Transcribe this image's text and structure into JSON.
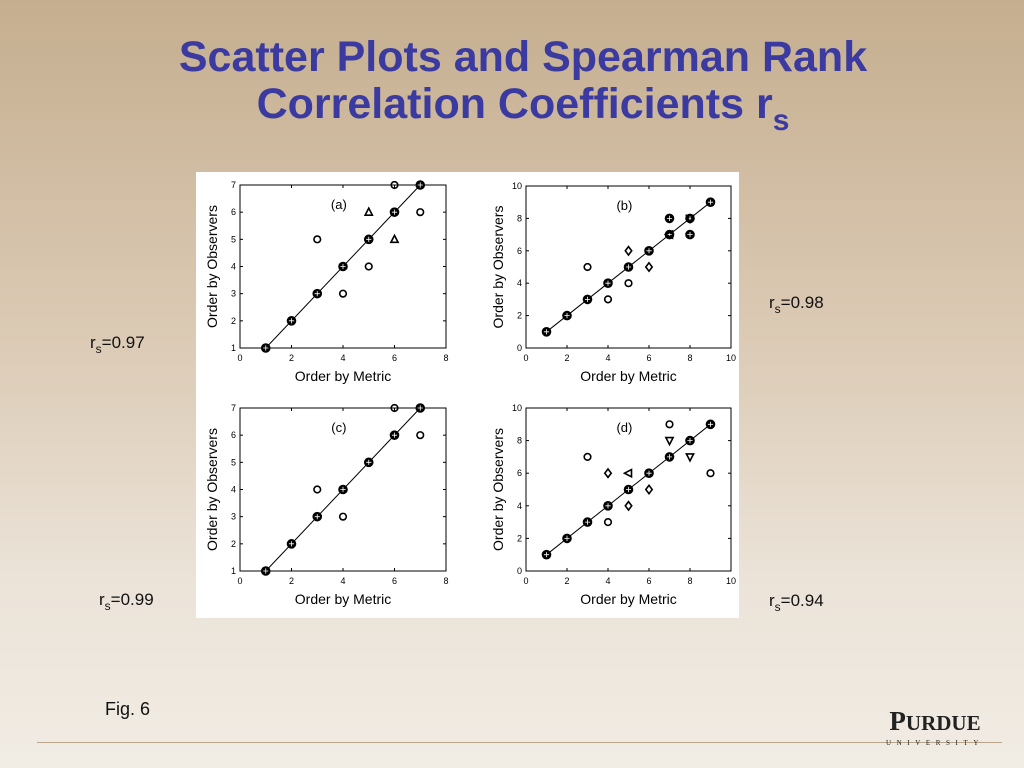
{
  "slide": {
    "title_line1": "Scatter Plots and Spearman Rank",
    "title_line2": "Correlation Coefficients r",
    "title_subscript": "s",
    "figure_caption": "Fig. 6",
    "logo_word_initial": "P",
    "logo_word_rest": "URDUE",
    "logo_university": "UNIVERSITY"
  },
  "rs_labels": [
    {
      "r": "r",
      "sub": "s",
      "value": "=0.97"
    },
    {
      "r": "r",
      "sub": "s",
      "value": "=0.98"
    },
    {
      "r": "r",
      "sub": "s",
      "value": "=0.99"
    },
    {
      "r": "r",
      "sub": "s",
      "value": "=0.94"
    }
  ],
  "chart_data": [
    {
      "type": "scatter",
      "panel_label": "(a)",
      "xlabel": "Order by Metric",
      "ylabel": "Order by Observers",
      "xlim": [
        0,
        8
      ],
      "ylim": [
        1,
        7
      ],
      "xticks": [
        0,
        2,
        4,
        6,
        8
      ],
      "yticks": [
        1,
        2,
        3,
        4,
        5,
        6,
        7
      ],
      "diagonal": [
        [
          1,
          1
        ],
        [
          7,
          7
        ]
      ],
      "points": [
        {
          "x": 1,
          "y": 1,
          "marker": "star"
        },
        {
          "x": 2,
          "y": 2,
          "marker": "star"
        },
        {
          "x": 3,
          "y": 3,
          "marker": "star"
        },
        {
          "x": 4,
          "y": 4,
          "marker": "star"
        },
        {
          "x": 5,
          "y": 5,
          "marker": "star"
        },
        {
          "x": 6,
          "y": 6,
          "marker": "star"
        },
        {
          "x": 7,
          "y": 7,
          "marker": "star"
        },
        {
          "x": 3,
          "y": 5,
          "marker": "circle"
        },
        {
          "x": 4,
          "y": 3,
          "marker": "circle"
        },
        {
          "x": 5,
          "y": 4,
          "marker": "circle"
        },
        {
          "x": 6,
          "y": 7,
          "marker": "circle"
        },
        {
          "x": 7,
          "y": 6,
          "marker": "circle"
        },
        {
          "x": 5,
          "y": 6,
          "marker": "triangle-up"
        },
        {
          "x": 6,
          "y": 5,
          "marker": "triangle-up"
        }
      ]
    },
    {
      "type": "scatter",
      "panel_label": "(b)",
      "xlabel": "Order by Metric",
      "ylabel": "Order by Observers",
      "xlim": [
        0,
        10
      ],
      "ylim": [
        0,
        10
      ],
      "xticks": [
        0,
        2,
        4,
        6,
        8,
        10
      ],
      "yticks": [
        0,
        2,
        4,
        6,
        8,
        10
      ],
      "diagonal": [
        [
          1,
          1
        ],
        [
          9,
          9
        ]
      ],
      "points": [
        {
          "x": 1,
          "y": 1,
          "marker": "star"
        },
        {
          "x": 2,
          "y": 2,
          "marker": "star"
        },
        {
          "x": 3,
          "y": 3,
          "marker": "star"
        },
        {
          "x": 4,
          "y": 4,
          "marker": "star"
        },
        {
          "x": 5,
          "y": 5,
          "marker": "star"
        },
        {
          "x": 6,
          "y": 6,
          "marker": "star"
        },
        {
          "x": 7,
          "y": 7,
          "marker": "star"
        },
        {
          "x": 8,
          "y": 8,
          "marker": "star"
        },
        {
          "x": 9,
          "y": 9,
          "marker": "star"
        },
        {
          "x": 3,
          "y": 5,
          "marker": "circle"
        },
        {
          "x": 4,
          "y": 3,
          "marker": "circle"
        },
        {
          "x": 5,
          "y": 4,
          "marker": "circle"
        },
        {
          "x": 5,
          "y": 6,
          "marker": "diamond"
        },
        {
          "x": 6,
          "y": 5,
          "marker": "diamond"
        },
        {
          "x": 7,
          "y": 8,
          "marker": "star"
        },
        {
          "x": 8,
          "y": 7,
          "marker": "star"
        },
        {
          "x": 7,
          "y": 7,
          "marker": "triangle-left"
        },
        {
          "x": 8,
          "y": 8,
          "marker": "triangle-down"
        }
      ]
    },
    {
      "type": "scatter",
      "panel_label": "(c)",
      "xlabel": "Order by Metric",
      "ylabel": "Order by Observers",
      "xlim": [
        0,
        8
      ],
      "ylim": [
        1,
        7
      ],
      "xticks": [
        0,
        2,
        4,
        6,
        8
      ],
      "yticks": [
        1,
        2,
        3,
        4,
        5,
        6,
        7
      ],
      "diagonal": [
        [
          1,
          1
        ],
        [
          7,
          7
        ]
      ],
      "points": [
        {
          "x": 1,
          "y": 1,
          "marker": "star"
        },
        {
          "x": 2,
          "y": 2,
          "marker": "star"
        },
        {
          "x": 3,
          "y": 3,
          "marker": "star"
        },
        {
          "x": 4,
          "y": 4,
          "marker": "star"
        },
        {
          "x": 5,
          "y": 5,
          "marker": "star"
        },
        {
          "x": 6,
          "y": 6,
          "marker": "star"
        },
        {
          "x": 7,
          "y": 7,
          "marker": "star"
        },
        {
          "x": 3,
          "y": 4,
          "marker": "circle"
        },
        {
          "x": 4,
          "y": 3,
          "marker": "circle"
        },
        {
          "x": 6,
          "y": 7,
          "marker": "circle"
        },
        {
          "x": 7,
          "y": 6,
          "marker": "circle"
        }
      ]
    },
    {
      "type": "scatter",
      "panel_label": "(d)",
      "xlabel": "Order by Metric",
      "ylabel": "Order by Observers",
      "xlim": [
        0,
        10
      ],
      "ylim": [
        0,
        10
      ],
      "xticks": [
        0,
        2,
        4,
        6,
        8,
        10
      ],
      "yticks": [
        0,
        2,
        4,
        6,
        8,
        10
      ],
      "diagonal": [
        [
          1,
          1
        ],
        [
          9,
          9
        ]
      ],
      "points": [
        {
          "x": 1,
          "y": 1,
          "marker": "star"
        },
        {
          "x": 2,
          "y": 2,
          "marker": "star"
        },
        {
          "x": 3,
          "y": 3,
          "marker": "star"
        },
        {
          "x": 4,
          "y": 4,
          "marker": "star"
        },
        {
          "x": 5,
          "y": 5,
          "marker": "star"
        },
        {
          "x": 6,
          "y": 6,
          "marker": "star"
        },
        {
          "x": 7,
          "y": 7,
          "marker": "star"
        },
        {
          "x": 8,
          "y": 8,
          "marker": "star"
        },
        {
          "x": 9,
          "y": 9,
          "marker": "star"
        },
        {
          "x": 3,
          "y": 7,
          "marker": "circle"
        },
        {
          "x": 4,
          "y": 3,
          "marker": "circle"
        },
        {
          "x": 7,
          "y": 9,
          "marker": "circle"
        },
        {
          "x": 9,
          "y": 6,
          "marker": "circle"
        },
        {
          "x": 4,
          "y": 6,
          "marker": "diamond"
        },
        {
          "x": 5,
          "y": 4,
          "marker": "diamond"
        },
        {
          "x": 6,
          "y": 5,
          "marker": "diamond"
        },
        {
          "x": 5,
          "y": 6,
          "marker": "triangle-left"
        },
        {
          "x": 7,
          "y": 8,
          "marker": "triangle-down"
        },
        {
          "x": 8,
          "y": 7,
          "marker": "triangle-down"
        }
      ]
    }
  ]
}
